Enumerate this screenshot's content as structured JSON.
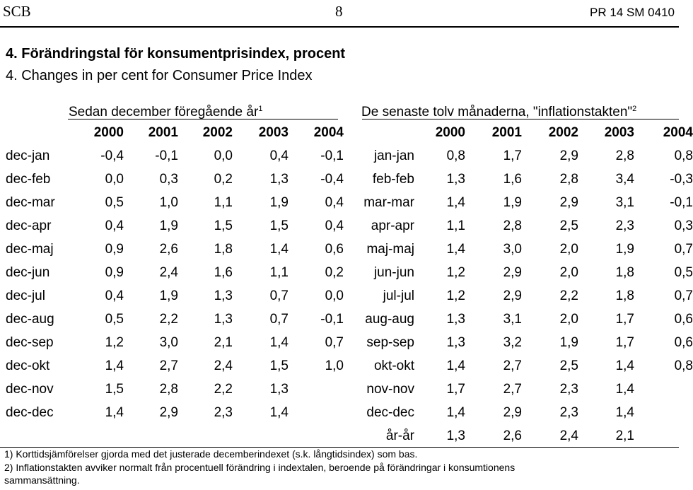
{
  "header": {
    "left": "SCB",
    "center": "8",
    "right": "PR 14 SM 0410"
  },
  "title": {
    "sv": "4. Förändringstal för konsumentprisindex, procent",
    "en": "4. Changes in per cent for Consumer Price Index"
  },
  "groups": {
    "left": {
      "label": "Sedan december föregående år",
      "note": "1"
    },
    "right": {
      "label": "De senaste tolv månaderna, \"inflationstakten\"",
      "note": "2"
    }
  },
  "years": [
    "2000",
    "2001",
    "2002",
    "2003",
    "2004"
  ],
  "rows": [
    {
      "l": "dec-jan",
      "lv": [
        "-0,4",
        "-0,1",
        "0,0",
        "0,4",
        "-0,1"
      ],
      "r": "jan-jan",
      "rv": [
        "0,8",
        "1,7",
        "2,9",
        "2,8",
        "0,8"
      ]
    },
    {
      "l": "dec-feb",
      "lv": [
        "0,0",
        "0,3",
        "0,2",
        "1,3",
        "-0,4"
      ],
      "r": "feb-feb",
      "rv": [
        "1,3",
        "1,6",
        "2,8",
        "3,4",
        "-0,3"
      ]
    },
    {
      "l": "dec-mar",
      "lv": [
        "0,5",
        "1,0",
        "1,1",
        "1,9",
        "0,4"
      ],
      "r": "mar-mar",
      "rv": [
        "1,4",
        "1,9",
        "2,9",
        "3,1",
        "-0,1"
      ]
    },
    {
      "l": "dec-apr",
      "lv": [
        "0,4",
        "1,9",
        "1,5",
        "1,5",
        "0,4"
      ],
      "r": "apr-apr",
      "rv": [
        "1,1",
        "2,8",
        "2,5",
        "2,3",
        "0,3"
      ]
    },
    {
      "l": "dec-maj",
      "lv": [
        "0,9",
        "2,6",
        "1,8",
        "1,4",
        "0,6"
      ],
      "r": "maj-maj",
      "rv": [
        "1,4",
        "3,0",
        "2,0",
        "1,9",
        "0,7"
      ]
    },
    {
      "l": "dec-jun",
      "lv": [
        "0,9",
        "2,4",
        "1,6",
        "1,1",
        "0,2"
      ],
      "r": "jun-jun",
      "rv": [
        "1,2",
        "2,9",
        "2,0",
        "1,8",
        "0,5"
      ]
    },
    {
      "l": "dec-jul",
      "lv": [
        "0,4",
        "1,9",
        "1,3",
        "0,7",
        "0,0"
      ],
      "r": "jul-jul",
      "rv": [
        "1,2",
        "2,9",
        "2,2",
        "1,8",
        "0,7"
      ]
    },
    {
      "l": "dec-aug",
      "lv": [
        "0,5",
        "2,2",
        "1,3",
        "0,7",
        "-0,1"
      ],
      "r": "aug-aug",
      "rv": [
        "1,3",
        "3,1",
        "2,0",
        "1,7",
        "0,6"
      ]
    },
    {
      "l": "dec-sep",
      "lv": [
        "1,2",
        "3,0",
        "2,1",
        "1,4",
        "0,7"
      ],
      "r": "sep-sep",
      "rv": [
        "1,3",
        "3,2",
        "1,9",
        "1,7",
        "0,6"
      ]
    },
    {
      "l": "dec-okt",
      "lv": [
        "1,4",
        "2,7",
        "2,4",
        "1,5",
        "1,0"
      ],
      "r": "okt-okt",
      "rv": [
        "1,4",
        "2,7",
        "2,5",
        "1,4",
        "0,8"
      ]
    },
    {
      "l": "dec-nov",
      "lv": [
        "1,5",
        "2,8",
        "2,2",
        "1,3",
        ""
      ],
      "r": "nov-nov",
      "rv": [
        "1,7",
        "2,7",
        "2,3",
        "1,4",
        ""
      ]
    },
    {
      "l": "dec-dec",
      "lv": [
        "1,4",
        "2,9",
        "2,3",
        "1,4",
        ""
      ],
      "r": "dec-dec",
      "rv": [
        "1,4",
        "2,9",
        "2,3",
        "1,4",
        ""
      ]
    },
    {
      "l": "",
      "lv": [
        "",
        "",
        "",
        "",
        ""
      ],
      "r": "år-år",
      "rv": [
        "1,3",
        "2,6",
        "2,4",
        "2,1",
        ""
      ]
    }
  ],
  "footnotes": [
    "1) Korttidsjämförelser gjorda med det justerade decemberindexet (s.k. långtidsindex) som bas.",
    "2) Inflationstakten avviker normalt från procentuell förändring i indextalen, beroende på förändringar i konsumtionens",
    "sammansättning."
  ]
}
